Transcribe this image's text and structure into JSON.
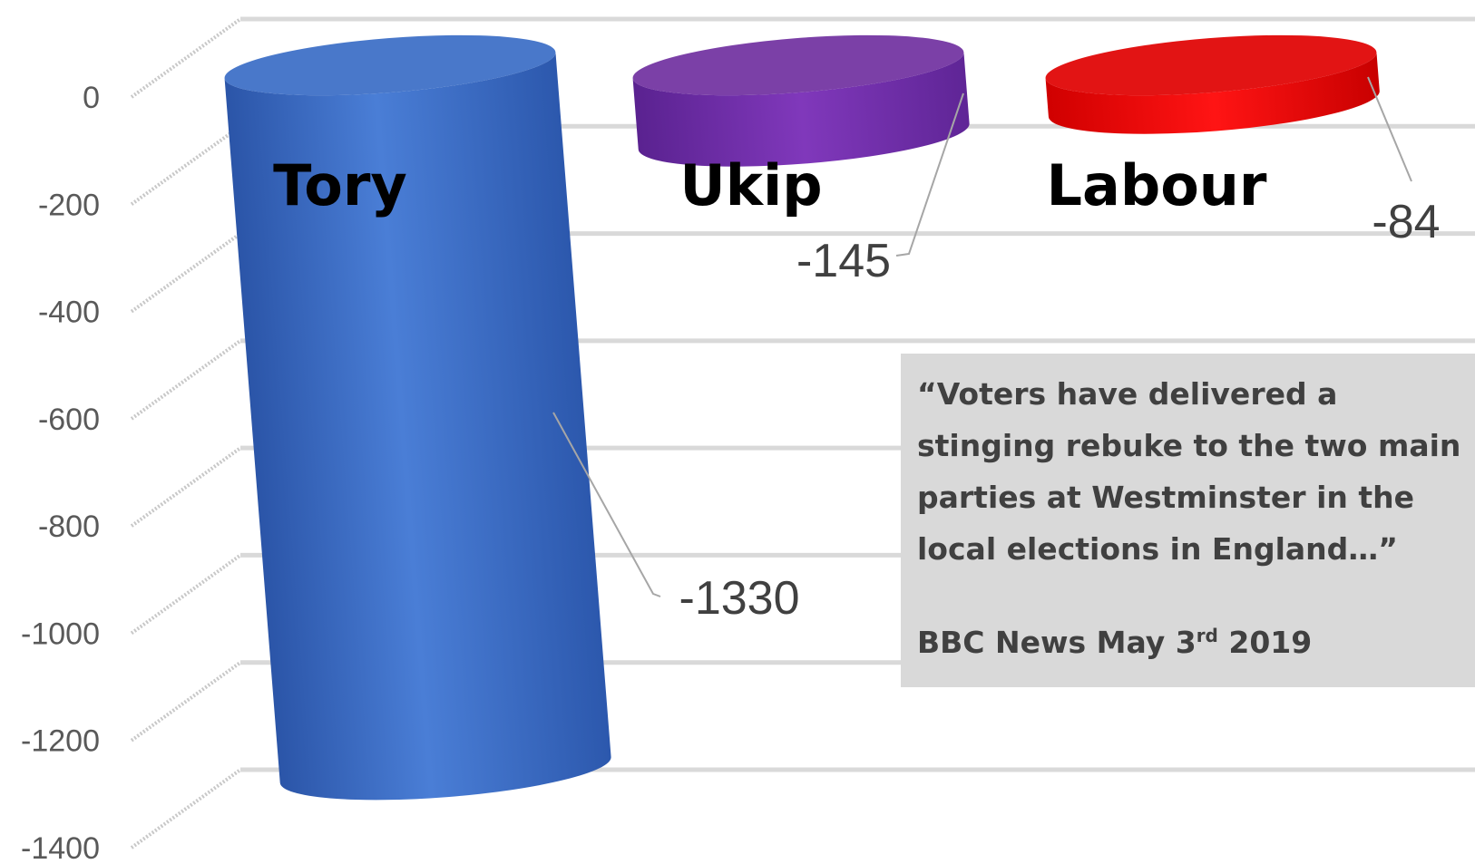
{
  "chart_data": {
    "type": "bar",
    "categories": [
      "Tory",
      "Ukip",
      "Labour"
    ],
    "values": [
      -1330,
      -145,
      -84
    ],
    "data_labels": [
      "-1330",
      "-145",
      "-84"
    ],
    "ylim": [
      -1400,
      0
    ],
    "yticks": [
      "0",
      "-200",
      "-400",
      "-600",
      "-800",
      "-1000",
      "-1200",
      "-1400"
    ],
    "grid": true,
    "legend": "none",
    "colors": [
      "#3a6dc6",
      "#7030a0",
      "#e00000"
    ]
  },
  "quote": {
    "text": "“Voters have delivered a\nstinging rebuke to the two main\nparties at Westminster in the\nlocal elections in England…”",
    "source_prefix": "BBC News May 3",
    "source_sup": "rd",
    "source_suffix": " 2019"
  }
}
